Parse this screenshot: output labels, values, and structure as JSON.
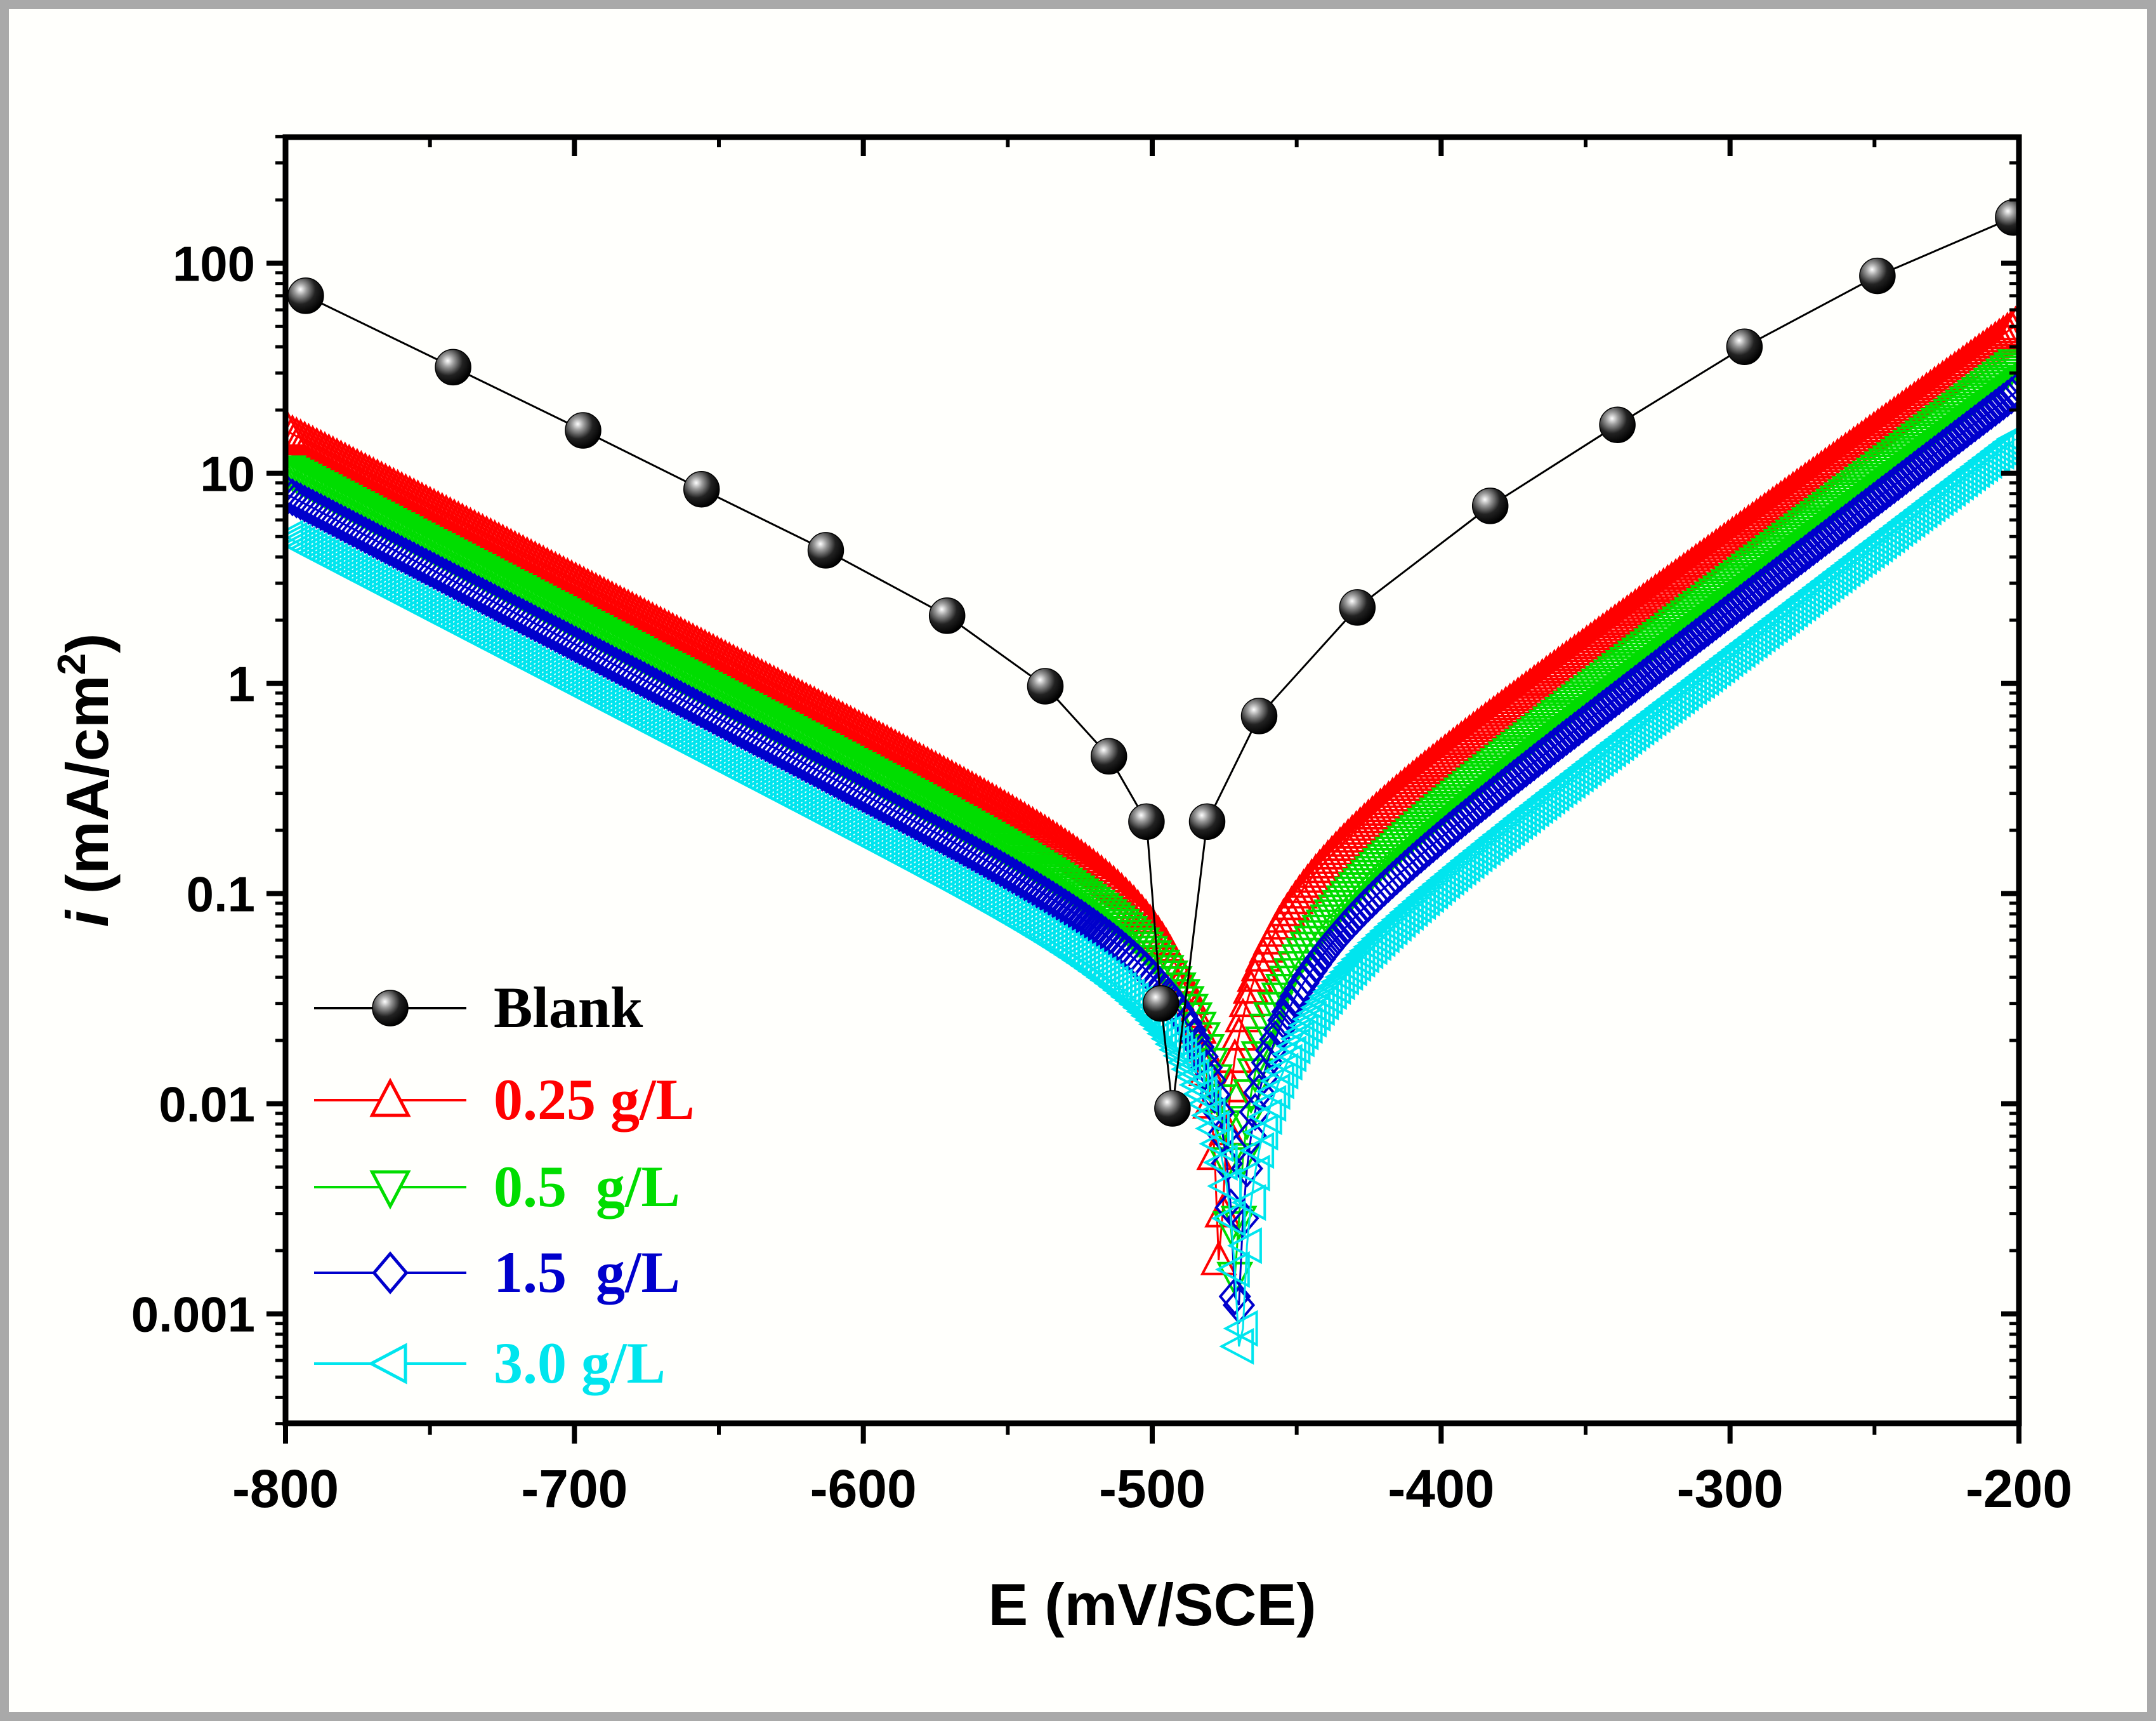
{
  "chart_data": {
    "type": "scatter",
    "title": "",
    "xlabel": "E (mV/SCE)",
    "ylabel_italic": "i",
    "ylabel_rest": " (mA/cm",
    "ylabel_sup": "2",
    "ylabel_close": ")",
    "xlim": [
      -800,
      -200
    ],
    "ylim": [
      0.0003,
      400
    ],
    "yscale": "log",
    "xticks": [
      -800,
      -700,
      -600,
      -500,
      -400,
      -300,
      -200
    ],
    "xtick_labels": [
      "-800",
      "-700",
      "-600",
      "-500",
      "-400",
      "-300",
      "-200"
    ],
    "yticks": [
      100,
      10,
      1,
      0.1,
      0.01,
      0.001
    ],
    "ytick_labels": [
      "100",
      "10",
      "1",
      "0.1",
      "0.01",
      "0.001"
    ],
    "legend_position": "bottom-left",
    "series": [
      {
        "name": "Blank",
        "color": "#000000",
        "marker": "sphere",
        "ecorr": -493,
        "x": [
          -793,
          -742,
          -697,
          -656,
          -613,
          -571,
          -537,
          -515,
          -502,
          -497,
          -493,
          -481,
          -463,
          -429,
          -383,
          -339,
          -295,
          -249,
          -202
        ],
        "y": [
          70,
          32,
          16,
          8.4,
          4.3,
          2.1,
          0.97,
          0.45,
          0.22,
          0.03,
          0.0095,
          0.22,
          0.7,
          2.3,
          7,
          17,
          40,
          87,
          165
        ]
      },
      {
        "name": "0.25 g/L",
        "color": "#ff0000",
        "marker": "triangle-up",
        "ecorr": -475,
        "ac": 16,
        "bc": 140,
        "aa": 52,
        "ba": 98,
        "min": 0.0018
      },
      {
        "name": "0.5  g/L",
        "color": "#00dd00",
        "marker": "triangle-down",
        "ecorr": -475,
        "ac": 10.5,
        "bc": 140,
        "aa": 34,
        "ba": 95,
        "min": 0.0015
      },
      {
        "name": "1.5  g/L",
        "color": "#0000cc",
        "marker": "diamond",
        "ecorr": -473,
        "ac": 8,
        "bc": 140,
        "aa": 25,
        "ba": 95,
        "min": 0.0011
      },
      {
        "name": "3.0 g/L",
        "color": "#00e5ee",
        "marker": "triangle-left",
        "ecorr": -471,
        "ac": 5,
        "bc": 140,
        "aa": 15,
        "ba": 95,
        "min": 0.0007
      }
    ]
  }
}
